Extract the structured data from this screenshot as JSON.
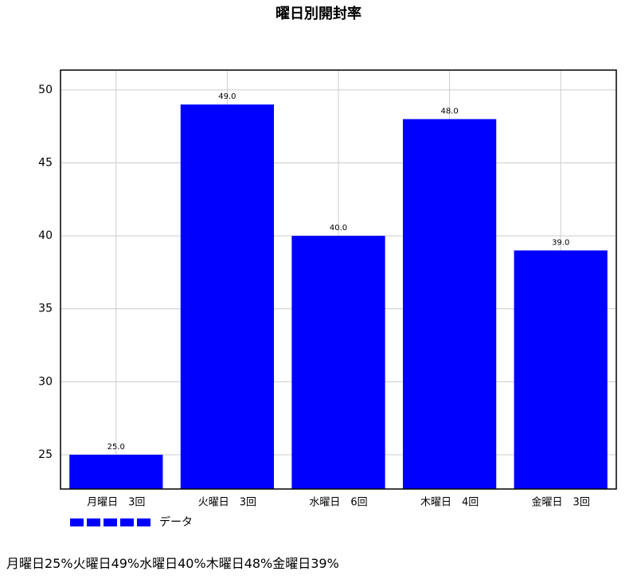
{
  "chart_data": {
    "type": "bar",
    "title": "曜日別開封率",
    "categories": [
      "月曜日　3回",
      "火曜日　3回",
      "水曜日　6回",
      "木曜日　4回",
      "金曜日　3回"
    ],
    "series": [
      {
        "name": "データ",
        "color": "#0000ff",
        "values": [
          25,
          49,
          40,
          48,
          39
        ],
        "value_labels": [
          "25.0",
          "49.0",
          "40.0",
          "48.0",
          "39.0"
        ]
      }
    ],
    "ylim": [
      22.65,
      51.36
    ],
    "yticks": [
      25,
      30,
      35,
      40,
      45,
      50
    ],
    "grid": true
  },
  "caption": "月曜日25%火曜日49%水曜日40%木曜日48%金曜日39%"
}
